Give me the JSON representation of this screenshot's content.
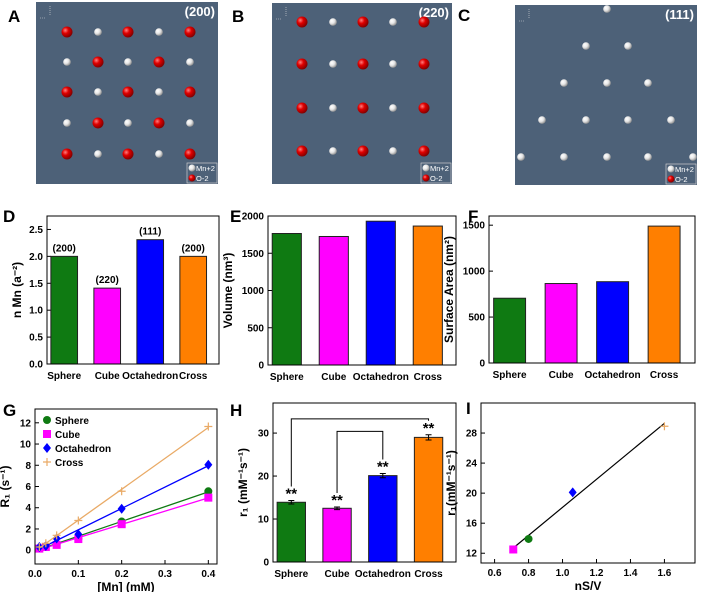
{
  "panel_labels": [
    "A",
    "B",
    "C",
    "D",
    "E",
    "F",
    "G",
    "H",
    "I"
  ],
  "structures": [
    {
      "facet": "(200)",
      "legend": [
        "Mn+2",
        "O-2"
      ]
    },
    {
      "facet": "(220)",
      "legend": [
        "Mn+2",
        "O-2"
      ]
    },
    {
      "facet": "(111)",
      "legend": [
        "Mn+2",
        "O-2"
      ]
    }
  ],
  "colors": {
    "sphere": "#0f7a12",
    "cube": "#ff00ff",
    "octahedron": "#0000ff",
    "cross": "#ff7f00",
    "cross_line": "#e9aa66",
    "atom_O": "#e00000",
    "atom_Mn": "#f0f0f0",
    "structure_bg": "#4d6178"
  },
  "chart_data": [
    {
      "panel": "D",
      "type": "bar",
      "categories": [
        "Sphere",
        "Cube",
        "Octahedron",
        "Cross"
      ],
      "values": [
        2.0,
        1.41,
        2.31,
        2.0
      ],
      "bar_labels": [
        "(200)",
        "(220)",
        "(111)",
        "(200)"
      ],
      "ylabel": "n Mn (a⁻²)",
      "ylim": [
        0,
        2.75
      ],
      "yticks": [
        "0.0",
        "0.5",
        "1.0",
        "1.5",
        "2.0",
        "2.5"
      ]
    },
    {
      "panel": "E",
      "type": "bar",
      "categories": [
        "Sphere",
        "Cube",
        "Octahedron",
        "Cross"
      ],
      "values": [
        1765,
        1725,
        1930,
        1865
      ],
      "ylabel": "Volume (nm³)",
      "ylim": [
        0,
        2000
      ],
      "yticks": [
        "0",
        "500",
        "1000",
        "1500",
        "2000"
      ]
    },
    {
      "panel": "F",
      "type": "bar",
      "categories": [
        "Sphere",
        "Cube",
        "Octahedron",
        "Cross"
      ],
      "values": [
        705,
        865,
        885,
        1490
      ],
      "ylabel": "Surface Area (nm²)",
      "ylim": [
        0,
        1600
      ],
      "yticks": [
        "0",
        "500",
        "1000",
        "1500"
      ]
    },
    {
      "panel": "G",
      "type": "scatter",
      "xlabel": "[Mn] (mM)",
      "ylabel": "R₁ (s⁻¹)",
      "xlim": [
        0,
        0.42
      ],
      "ylim": [
        -1.3,
        13.3
      ],
      "xticks": [
        "0.0",
        "0.1",
        "0.2",
        "0.3",
        "0.4"
      ],
      "yticks": [
        "0",
        "2",
        "4",
        "6",
        "8",
        "10",
        "12"
      ],
      "legend_placement": "top-left",
      "x": [
        0.01,
        0.025,
        0.05,
        0.1,
        0.2,
        0.4
      ],
      "series": [
        {
          "name": "Sphere",
          "marker": "circle",
          "values": [
            0.2,
            0.35,
            0.6,
            1.1,
            2.7,
            5.55
          ]
        },
        {
          "name": "Cube",
          "marker": "square",
          "values": [
            0.15,
            0.3,
            0.5,
            1.05,
            2.45,
            4.95
          ]
        },
        {
          "name": "Octahedron",
          "marker": "diamond",
          "values": [
            0.3,
            0.4,
            1.1,
            1.5,
            3.9,
            8.05
          ]
        },
        {
          "name": "Cross",
          "marker": "plus",
          "values": [
            0.3,
            0.65,
            1.4,
            2.8,
            5.55,
            11.65
          ]
        }
      ]
    },
    {
      "panel": "H",
      "type": "bar",
      "categories": [
        "Sphere",
        "Cube",
        "Octahedron",
        "Cross"
      ],
      "values": [
        13.9,
        12.5,
        20.1,
        29.0
      ],
      "errors": [
        0.4,
        0.3,
        0.5,
        0.6
      ],
      "annotations": [
        "**",
        "**",
        "**",
        "**"
      ],
      "brackets": [
        {
          "from": "Sphere",
          "to": "Cross",
          "y": 33.3
        },
        {
          "from": "Cube",
          "to": "Octahedron",
          "y": 30.4
        }
      ],
      "ylabel": "r₁ (mM⁻¹s⁻¹)",
      "ylim": [
        0,
        37
      ],
      "yticks": [
        "0",
        "10",
        "20",
        "30"
      ]
    },
    {
      "panel": "I",
      "type": "scatter",
      "xlabel": "nS/V",
      "ylabel": "r₁(mM⁻¹s⁻¹)",
      "xlim": [
        0.52,
        1.78
      ],
      "ylim": [
        10.7,
        32
      ],
      "xticks": [
        "0.6",
        "0.8",
        "1.0",
        "1.2",
        "1.4",
        "1.6"
      ],
      "yticks": [
        "12",
        "16",
        "20",
        "24",
        "28"
      ],
      "points": [
        {
          "name": "Cube",
          "marker": "square",
          "x": 0.71,
          "y": 12.5
        },
        {
          "name": "Sphere",
          "marker": "circle",
          "x": 0.8,
          "y": 13.9
        },
        {
          "name": "Octahedron",
          "marker": "diamond",
          "x": 1.06,
          "y": 20.1
        },
        {
          "name": "Cross",
          "marker": "plus",
          "x": 1.6,
          "y": 28.9
        }
      ],
      "fit_line": [
        [
          0.71,
          12.7
        ],
        [
          1.6,
          29.3
        ]
      ]
    }
  ]
}
